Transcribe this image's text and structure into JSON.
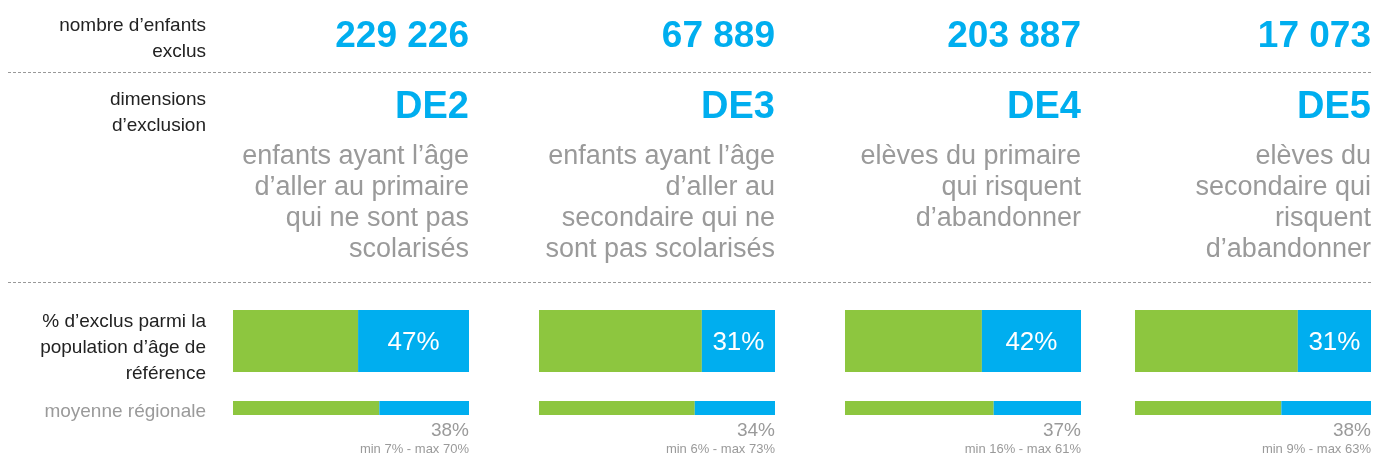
{
  "chart_data": [
    {
      "type": "other",
      "annotations": [
        "nombre d’enfants exclus",
        "dimensions d’exclusion",
        "% d’exclus parmi la population d’âge de référence",
        "moyenne régionale"
      ]
    },
    {
      "type": "bar",
      "orientation": "horizontal",
      "stacked": true,
      "title": "229 226",
      "subtitle": "DE2",
      "categories": [
        null
      ],
      "xlim": [
        0,
        100
      ],
      "tick_labels": false,
      "series": [
        {
          "color": "#8dc63f",
          "values": [
            53
          ]
        },
        {
          "color": "#00aeef",
          "values": [
            47
          ],
          "value_labels": [
            "47%"
          ]
        }
      ],
      "annotations": [
        "enfants ayant l’âge d’aller au primaire qui ne sont pas scolarisés"
      ]
    },
    {
      "type": "bar",
      "orientation": "horizontal",
      "stacked": true,
      "categories": [
        null
      ],
      "xlim": [
        0,
        100
      ],
      "tick_labels": false,
      "series": [
        {
          "color": "#8dc63f",
          "values": [
            62
          ]
        },
        {
          "color": "#00aeef",
          "values": [
            38
          ],
          "value_labels": [
            "38%"
          ]
        }
      ],
      "annotations": [
        "min 7% - max 70%"
      ]
    },
    {
      "type": "bar",
      "orientation": "horizontal",
      "stacked": true,
      "title": "67 889",
      "subtitle": "DE3",
      "categories": [
        null
      ],
      "xlim": [
        0,
        100
      ],
      "tick_labels": false,
      "series": [
        {
          "color": "#8dc63f",
          "values": [
            69
          ]
        },
        {
          "color": "#00aeef",
          "values": [
            31
          ],
          "value_labels": [
            "31%"
          ]
        }
      ],
      "annotations": [
        "enfants ayant l’âge d’aller au secondaire qui ne sont pas scolarisés"
      ]
    },
    {
      "type": "bar",
      "orientation": "horizontal",
      "stacked": true,
      "categories": [
        null
      ],
      "xlim": [
        0,
        100
      ],
      "tick_labels": false,
      "series": [
        {
          "color": "#8dc63f",
          "values": [
            66
          ]
        },
        {
          "color": "#00aeef",
          "values": [
            34
          ],
          "value_labels": [
            "34%"
          ]
        }
      ],
      "annotations": [
        "min 6% - max 73%"
      ]
    },
    {
      "type": "bar",
      "orientation": "horizontal",
      "stacked": true,
      "title": "203 887",
      "subtitle": "DE4",
      "categories": [
        null
      ],
      "xlim": [
        0,
        100
      ],
      "tick_labels": false,
      "series": [
        {
          "color": "#8dc63f",
          "values": [
            58
          ]
        },
        {
          "color": "#00aeef",
          "values": [
            42
          ],
          "value_labels": [
            "42%"
          ]
        }
      ],
      "annotations": [
        "elèves du primaire qui risquent d’abandonner"
      ]
    },
    {
      "type": "bar",
      "orientation": "horizontal",
      "stacked": true,
      "categories": [
        null
      ],
      "xlim": [
        0,
        100
      ],
      "tick_labels": false,
      "series": [
        {
          "color": "#8dc63f",
          "values": [
            63
          ]
        },
        {
          "color": "#00aeef",
          "values": [
            37
          ],
          "value_labels": [
            "37%"
          ]
        }
      ],
      "annotations": [
        "min 16% - max 61%"
      ]
    },
    {
      "type": "bar",
      "orientation": "horizontal",
      "stacked": true,
      "title": "17 073",
      "subtitle": "DE5",
      "categories": [
        null
      ],
      "xlim": [
        0,
        100
      ],
      "tick_labels": false,
      "series": [
        {
          "color": "#8dc63f",
          "values": [
            69
          ]
        },
        {
          "color": "#00aeef",
          "values": [
            31
          ],
          "value_labels": [
            "31%"
          ]
        }
      ],
      "annotations": [
        "elèves du secondaire qui risquent d’abandonner"
      ]
    },
    {
      "type": "bar",
      "orientation": "horizontal",
      "stacked": true,
      "categories": [
        null
      ],
      "xlim": [
        0,
        100
      ],
      "tick_labels": false,
      "series": [
        {
          "color": "#8dc63f",
          "values": [
            62
          ]
        },
        {
          "color": "#00aeef",
          "values": [
            38
          ],
          "value_labels": [
            "38%"
          ]
        }
      ],
      "annotations": [
        "min 9% - max 63%"
      ]
    }
  ]
}
